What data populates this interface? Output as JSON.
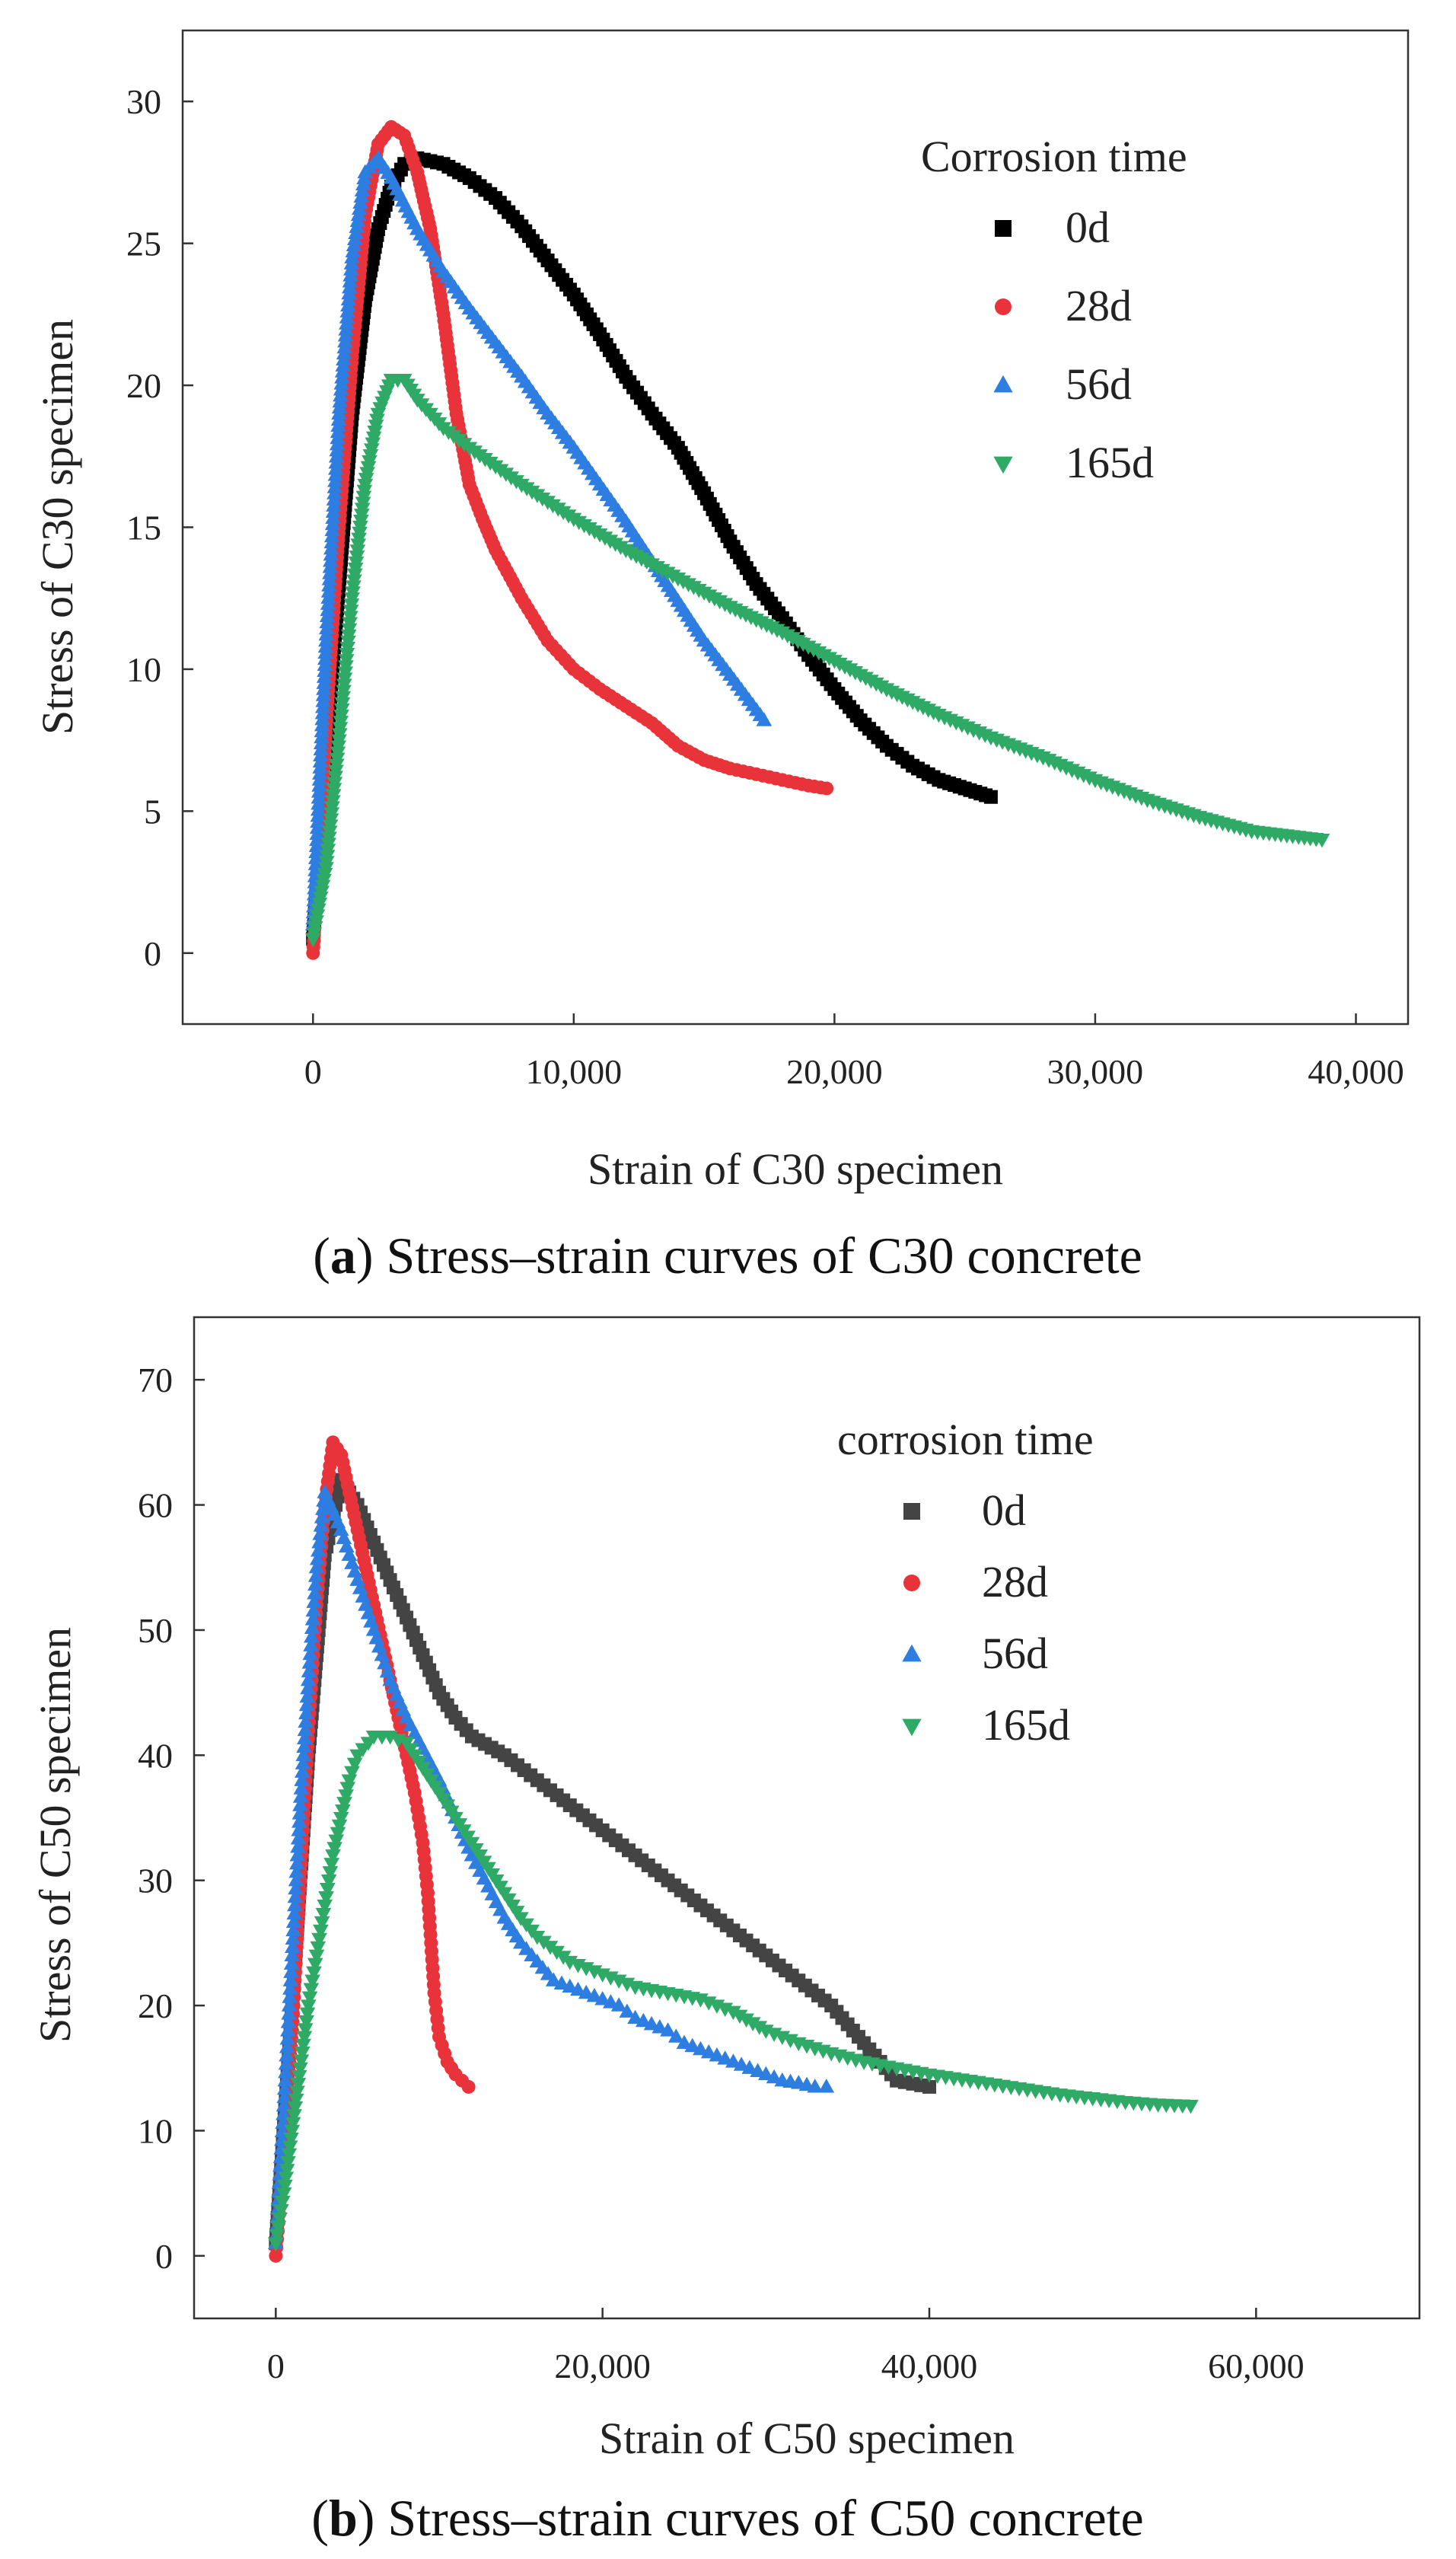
{
  "chart_data": [
    {
      "type": "scatter",
      "panel_letter": "a",
      "caption_text": " Stress–strain curves of C30 concrete",
      "xlabel": "Strain of C30 specimen",
      "ylabel": "Stress of C30 specimen",
      "xlim": [
        -5000,
        42000
      ],
      "ylim": [
        -2.5,
        32.5
      ],
      "xticks": [
        0,
        10000,
        20000,
        30000,
        40000
      ],
      "xtick_labels": [
        "0",
        "10,000",
        "20,000",
        "30,000",
        "40,000"
      ],
      "yticks": [
        0,
        5,
        10,
        15,
        20,
        25,
        30
      ],
      "ytick_labels": [
        "0",
        "5",
        "10",
        "15",
        "20",
        "25",
        "30"
      ],
      "legend_title": "Corrosion time",
      "series": [
        {
          "name": "0d",
          "color": "#000000",
          "marker": "square",
          "x": [
            0,
            500,
            1000,
            1500,
            2000,
            2500,
            3000,
            3500,
            4000,
            5000,
            6000,
            7000,
            8000,
            9000,
            10000,
            11000,
            12000,
            13000,
            14000,
            15000,
            16000,
            17000,
            18000,
            19000,
            20000,
            21000,
            22000,
            23000,
            24000,
            25000,
            26000
          ],
          "y": [
            0.5,
            7,
            13,
            19,
            23,
            25.5,
            27,
            27.8,
            28,
            27.8,
            27.3,
            26.6,
            25.6,
            24.4,
            23.2,
            21.8,
            20.3,
            19,
            17.8,
            16.2,
            14.5,
            13,
            11.8,
            10.5,
            9.3,
            8.2,
            7.3,
            6.6,
            6.1,
            5.8,
            5.5
          ]
        },
        {
          "name": "28d",
          "color": "#e8333a",
          "marker": "circle",
          "x": [
            0,
            500,
            1000,
            1500,
            2000,
            2500,
            3000,
            3500,
            4000,
            4500,
            5000,
            5500,
            6000,
            6500,
            7000,
            8000,
            9000,
            10000,
            11000,
            12000,
            13000,
            14000,
            15000,
            16000,
            17000,
            18000,
            19000,
            19700
          ],
          "y": [
            0,
            8,
            15,
            21,
            26,
            28.5,
            29.1,
            28.8,
            27.5,
            25.5,
            22.5,
            19,
            16.5,
            15.3,
            14.2,
            12.5,
            11,
            10,
            9.3,
            8.7,
            8.1,
            7.3,
            6.8,
            6.5,
            6.3,
            6.1,
            5.9,
            5.8
          ]
        },
        {
          "name": "56d",
          "color": "#2e7de0",
          "marker": "triangle-up",
          "x": [
            0,
            500,
            1000,
            1500,
            2000,
            2500,
            3000,
            4000,
            5000,
            6000,
            7000,
            8000,
            9000,
            10000,
            11000,
            12000,
            13000,
            14000,
            15000,
            16000,
            17300
          ],
          "y": [
            1,
            11,
            19,
            24.5,
            27.5,
            28,
            27.3,
            25.5,
            24,
            22.7,
            21.5,
            20.3,
            19,
            17.8,
            16.5,
            15.2,
            13.8,
            12.4,
            11,
            9.8,
            8.2
          ]
        },
        {
          "name": "165d",
          "color": "#2eaa66",
          "marker": "triangle-down",
          "x": [
            0,
            500,
            1000,
            1500,
            2000,
            2500,
            3000,
            3500,
            4000,
            5000,
            6000,
            8000,
            10000,
            12000,
            14000,
            16000,
            18000,
            20000,
            22000,
            24000,
            26000,
            28000,
            30000,
            32000,
            34000,
            36000,
            38700
          ],
          "y": [
            0.5,
            3,
            7.5,
            12.5,
            16.5,
            19,
            20.2,
            20.2,
            19.5,
            18.5,
            17.8,
            16.5,
            15.3,
            14.2,
            13.2,
            12.2,
            11.3,
            10.3,
            9.3,
            8.4,
            7.6,
            6.9,
            6.1,
            5.4,
            4.8,
            4.3,
            4
          ]
        }
      ]
    },
    {
      "type": "scatter",
      "panel_letter": "b",
      "caption_text": " Stress–strain curves of C50 concrete",
      "xlabel": "Strain of C50 specimen",
      "ylabel": "Stress of C50 specimen",
      "xlim": [
        -5000,
        70000
      ],
      "ylim": [
        -5,
        75
      ],
      "xticks": [
        0,
        20000,
        40000,
        60000
      ],
      "xtick_labels": [
        "0",
        "20,000",
        "40,000",
        "60,000"
      ],
      "yticks": [
        0,
        10,
        20,
        30,
        40,
        50,
        60,
        70
      ],
      "ytick_labels": [
        "0",
        "10",
        "20",
        "30",
        "40",
        "50",
        "60",
        "70"
      ],
      "legend_title": "corrosion time",
      "series": [
        {
          "name": "0d",
          "color": "#444444",
          "marker": "square",
          "x": [
            0,
            1000,
            2000,
            3000,
            4000,
            5000,
            6000,
            7000,
            8000,
            9000,
            10000,
            11000,
            12000,
            14000,
            16000,
            18000,
            20000,
            22000,
            24000,
            26000,
            28000,
            30000,
            32000,
            34000,
            36000,
            38000,
            40000
          ],
          "y": [
            1,
            20,
            40,
            56,
            62,
            60,
            57,
            54,
            51,
            48,
            45,
            43,
            41.5,
            40,
            38,
            36,
            34,
            32,
            30,
            28,
            26,
            24,
            22,
            20,
            17,
            14,
            13.5
          ]
        },
        {
          "name": "28d",
          "color": "#e8333a",
          "marker": "circle",
          "x": [
            0,
            500,
            1000,
            1500,
            2000,
            2500,
            3000,
            3500,
            4000,
            4500,
            5000,
            5500,
            6000,
            6500,
            7000,
            7500,
            8000,
            8500,
            9000,
            9300,
            9500,
            9700,
            10000,
            10500,
            11000,
            11800
          ],
          "y": [
            0,
            8,
            18,
            30,
            42,
            52,
            60,
            65,
            64,
            61,
            58,
            55,
            52,
            49,
            46,
            43,
            40,
            37,
            33,
            29,
            25,
            21,
            17.5,
            15.5,
            14.5,
            13.5
          ]
        },
        {
          "name": "56d",
          "color": "#2e7de0",
          "marker": "triangle-up",
          "x": [
            0,
            500,
            1000,
            1500,
            2000,
            2500,
            3000,
            4000,
            5000,
            6000,
            7000,
            8000,
            9000,
            10000,
            11000,
            12000,
            13000,
            14000,
            15000,
            16000,
            17000,
            18000,
            19000,
            20000,
            21000,
            22000,
            23000,
            24000,
            25000,
            26000,
            27000,
            28000,
            29000,
            30000,
            31000,
            32000,
            33000,
            33700
          ],
          "y": [
            1,
            12,
            24,
            36,
            46,
            55,
            61,
            58,
            54,
            50,
            46,
            43,
            40.5,
            38,
            35,
            32,
            29.5,
            27,
            25,
            23.5,
            22,
            21.5,
            21,
            20.5,
            20,
            19,
            18.5,
            18,
            17,
            16.5,
            16,
            15.5,
            15,
            14.5,
            14,
            13.8,
            13.5,
            13.5
          ]
        },
        {
          "name": "165d",
          "color": "#2eaa66",
          "marker": "triangle-down",
          "x": [
            0,
            500,
            1000,
            1500,
            2000,
            2500,
            3000,
            3500,
            4000,
            4500,
            5000,
            6000,
            7000,
            8000,
            9000,
            10000,
            11000,
            12000,
            13000,
            14000,
            15000,
            16000,
            18000,
            20000,
            22000,
            24000,
            26000,
            28000,
            30000,
            32000,
            34000,
            36000,
            38000,
            40000,
            42000,
            44000,
            46000,
            48000,
            50000,
            52000,
            54000,
            56000
          ],
          "y": [
            1,
            5,
            10,
            15,
            20,
            24,
            28,
            32,
            35,
            38,
            40,
            41.5,
            41.5,
            41,
            39,
            37,
            35,
            33,
            31,
            29,
            27,
            25.5,
            23.5,
            22.5,
            21.5,
            21,
            20.5,
            19.5,
            18,
            17,
            16.2,
            15.5,
            15,
            14.5,
            14.1,
            13.7,
            13.3,
            12.9,
            12.6,
            12.3,
            12.1,
            12
          ]
        }
      ]
    }
  ]
}
